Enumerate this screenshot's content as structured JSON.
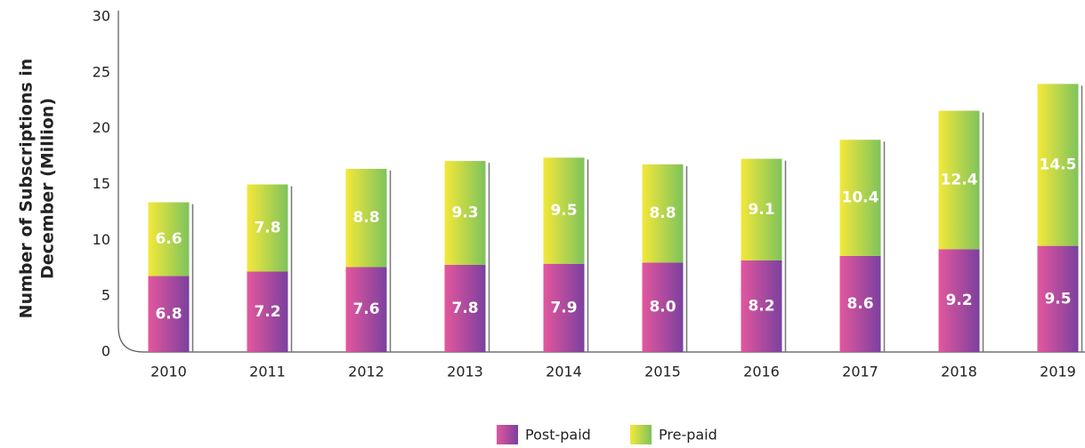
{
  "chart_data": {
    "type": "stacked_bar",
    "ylabel": [
      "Number of Subscriptions in",
      "December (Million)"
    ],
    "categories": [
      "2010",
      "2011",
      "2012",
      "2013",
      "2014",
      "2015",
      "2016",
      "2017",
      "2018",
      "2019"
    ],
    "series": [
      {
        "name": "Post-paid",
        "color": [
          "#e3579d",
          "#7b409f"
        ],
        "values": [
          6.8,
          7.2,
          7.6,
          7.8,
          7.9,
          8.0,
          8.2,
          8.6,
          9.2,
          9.5
        ],
        "value_labels": [
          "6.8",
          "7.2",
          "7.6",
          "7.8",
          "7.9",
          "8.0",
          "8.2",
          "8.6",
          "9.2",
          "9.5"
        ]
      },
      {
        "name": "Pre-paid",
        "color": [
          "#f4e83a",
          "#7ec35c"
        ],
        "values": [
          6.6,
          7.8,
          8.8,
          9.3,
          9.5,
          8.8,
          9.1,
          10.4,
          12.4,
          14.5
        ],
        "value_labels": [
          "6.6",
          "7.8",
          "8.8",
          "9.3",
          "9.5",
          "8.8",
          "9.1",
          "10.4",
          "12.4",
          "14.5"
        ]
      }
    ],
    "ylim": [
      0,
      30
    ],
    "yticks": [
      0,
      5,
      10,
      15,
      20,
      25,
      30
    ],
    "grid": false,
    "legend": "bottom"
  }
}
